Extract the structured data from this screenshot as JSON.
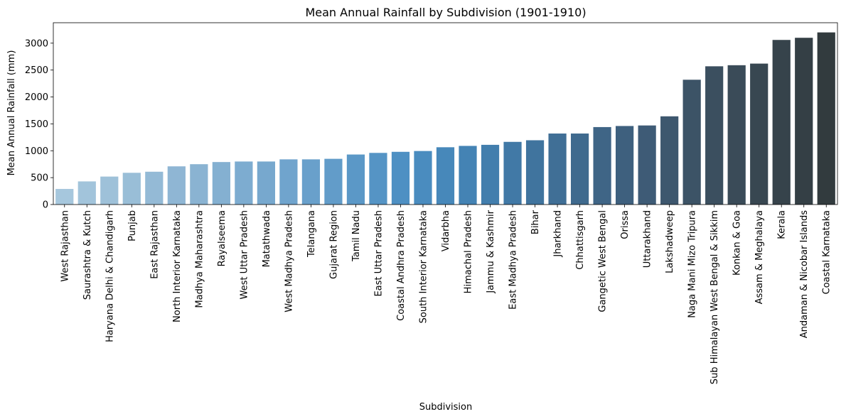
{
  "chart_data": {
    "type": "bar",
    "title": "Mean Annual Rainfall by Subdivision (1901-1910)",
    "xlabel": "Subdivision",
    "ylabel": "Mean Annual Rainfall (mm)",
    "ylim": [
      0,
      3380
    ],
    "yticks": [
      0,
      500,
      1000,
      1500,
      2000,
      2500,
      3000
    ],
    "grid": false,
    "legend": "none",
    "palette": "blues_d (light blue to dark slate)",
    "categories": [
      "West Rajasthan",
      "Saurashtra & Kutch",
      "Haryana Delhi & Chandigarh",
      "Punjab",
      "East Rajasthan",
      "North Interior Karnataka",
      "Madhya Maharashtra",
      "Rayalseema",
      "West Uttar Pradesh",
      "Matathwada",
      "West Madhya Pradesh",
      "Telangana",
      "Gujarat Region",
      "Tamil Nadu",
      "East Uttar Pradesh",
      "Coastal Andhra Pradesh",
      "South Interior Karnataka",
      "Vidarbha",
      "Himachal Pradesh",
      "Jammu & Kashmir",
      "East Madhya Pradesh",
      "Bihar",
      "Jharkhand",
      "Chhattisgarh",
      "Gangetic West Bengal",
      "Orissa",
      "Uttarakhand",
      "Lakshadweep",
      "Naga Mani Mizo Tripura",
      "Sub Himalayan West Bengal & Sikkim",
      "Konkan & Goa",
      "Assam & Meghalaya",
      "Kerala",
      "Andaman & Nicobar Islands",
      "Coastal Karnataka"
    ],
    "values": [
      290,
      430,
      520,
      590,
      610,
      710,
      750,
      790,
      800,
      800,
      840,
      840,
      850,
      930,
      960,
      980,
      995,
      1065,
      1090,
      1110,
      1165,
      1195,
      1320,
      1320,
      1440,
      1460,
      1470,
      1640,
      2320,
      2570,
      2590,
      2620,
      3060,
      3100,
      3200
    ],
    "colors": [
      "#a6c7dd",
      "#a2c4db",
      "#9ec1d9",
      "#99bed7",
      "#94bad6",
      "#8fb6d4",
      "#8ab3d2",
      "#84b0d1",
      "#7dacd0",
      "#77a8ce",
      "#70a4cd",
      "#69a0cb",
      "#629cc9",
      "#5b98c7",
      "#5594c5",
      "#4e90c3",
      "#4a8cbf",
      "#4788ba",
      "#4483b4",
      "#427ead",
      "#4179a6",
      "#40749e",
      "#406f96",
      "#3f6a8e",
      "#3f6586",
      "#3e607e",
      "#3e5b76",
      "#3d576e",
      "#3c5366",
      "#3b4f5f",
      "#3a4b58",
      "#384751",
      "#36434b",
      "#343f45",
      "#323b3e"
    ]
  }
}
